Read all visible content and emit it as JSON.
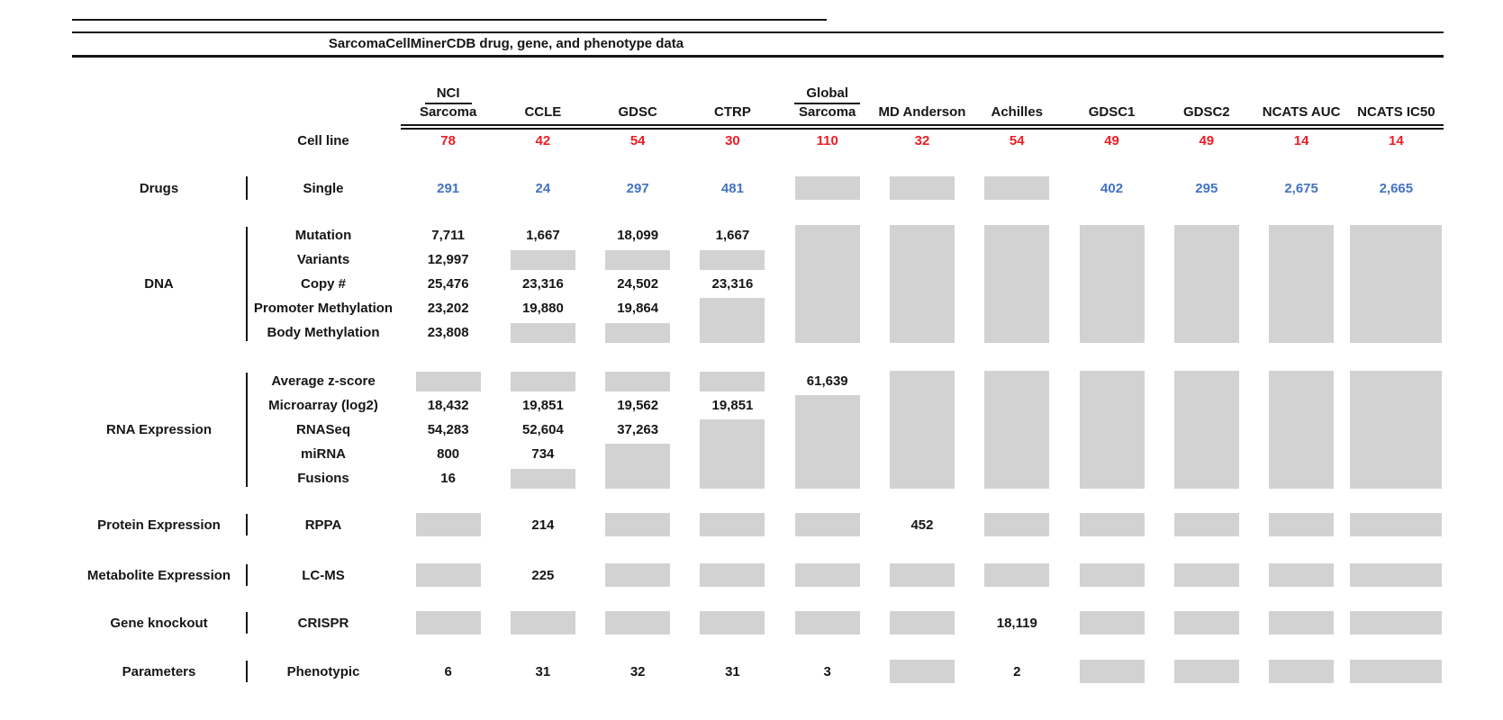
{
  "title": "SarcomaCellMinerCDB drug, gene, and phenotype data",
  "colors": {
    "cell_line_count": "#ee1c25",
    "drug_count": "#4472c4",
    "missing_data_box": "#d2d2d2",
    "text": "#161616"
  },
  "chart_data": {
    "type": "table",
    "title": "SarcomaCellMinerCDB drug, gene, and phenotype data",
    "missing_marker": "gray box = data not available",
    "header": {
      "columns": [
        {
          "top": "NCI",
          "label": "Sarcoma"
        },
        {
          "label": "CCLE"
        },
        {
          "label": "GDSC"
        },
        {
          "label": "CTRP"
        },
        {
          "top": "Global",
          "label": "Sarcoma"
        },
        {
          "label": "MD Anderson"
        },
        {
          "label": "Achilles"
        },
        {
          "label": "GDSC1"
        },
        {
          "label": "GDSC2"
        },
        {
          "label": "NCATS AUC"
        },
        {
          "label": "NCATS IC50"
        }
      ]
    },
    "cell_line": {
      "label": "Cell line",
      "values": [
        "78",
        "42",
        "54",
        "30",
        "110",
        "32",
        "54",
        "49",
        "49",
        "14",
        "14"
      ]
    },
    "sections": [
      {
        "category": "Drugs",
        "rows": [
          {
            "label": "Single",
            "values": [
              "291",
              "24",
              "297",
              "481",
              null,
              null,
              null,
              "402",
              "295",
              "2,675",
              "2,665"
            ]
          }
        ]
      },
      {
        "category": "DNA",
        "rows": [
          {
            "label": "Mutation",
            "values": [
              "7,711",
              "1,667",
              "18,099",
              "1,667",
              null,
              null,
              null,
              null,
              null,
              null,
              null
            ]
          },
          {
            "label": "Variants",
            "values": [
              "12,997",
              null,
              null,
              null,
              null,
              null,
              null,
              null,
              null,
              null,
              null
            ]
          },
          {
            "label": "Copy #",
            "values": [
              "25,476",
              "23,316",
              "24,502",
              "23,316",
              null,
              null,
              null,
              null,
              null,
              null,
              null
            ]
          },
          {
            "label": "Promoter Methylation",
            "values": [
              "23,202",
              "19,880",
              "19,864",
              null,
              null,
              null,
              null,
              null,
              null,
              null,
              null
            ]
          },
          {
            "label": "Body Methylation",
            "values": [
              "23,808",
              null,
              null,
              null,
              null,
              null,
              null,
              null,
              null,
              null,
              null
            ]
          }
        ]
      },
      {
        "category": "RNA Expression",
        "rows": [
          {
            "label": "Average z-score",
            "values": [
              null,
              null,
              null,
              null,
              "61,639",
              null,
              null,
              null,
              null,
              null,
              null
            ]
          },
          {
            "label": "Microarray (log2)",
            "values": [
              "18,432",
              "19,851",
              "19,562",
              "19,851",
              null,
              null,
              null,
              null,
              null,
              null,
              null
            ]
          },
          {
            "label": "RNASeq",
            "values": [
              "54,283",
              "52,604",
              "37,263",
              null,
              null,
              null,
              null,
              null,
              null,
              null,
              null
            ]
          },
          {
            "label": "miRNA",
            "values": [
              "800",
              "734",
              null,
              null,
              null,
              null,
              null,
              null,
              null,
              null,
              null
            ]
          },
          {
            "label": "Fusions",
            "values": [
              "16",
              null,
              null,
              null,
              null,
              null,
              null,
              null,
              null,
              null,
              null
            ]
          }
        ]
      },
      {
        "category": "Protein Expression",
        "rows": [
          {
            "label": "RPPA",
            "values": [
              null,
              "214",
              null,
              null,
              null,
              "452",
              null,
              null,
              null,
              null,
              null
            ]
          }
        ]
      },
      {
        "category": "Metabolite Expression",
        "rows": [
          {
            "label": "LC-MS",
            "values": [
              null,
              "225",
              null,
              null,
              null,
              null,
              null,
              null,
              null,
              null,
              null
            ]
          }
        ]
      },
      {
        "category": "Gene knockout",
        "rows": [
          {
            "label": "CRISPR",
            "values": [
              null,
              null,
              null,
              null,
              null,
              null,
              "18,119",
              null,
              null,
              null,
              null
            ]
          }
        ]
      },
      {
        "category": "Parameters",
        "rows": [
          {
            "label": "Phenotypic",
            "values": [
              "6",
              "31",
              "32",
              "31",
              "3",
              null,
              "2",
              null,
              null,
              null,
              null
            ]
          }
        ]
      }
    ]
  }
}
